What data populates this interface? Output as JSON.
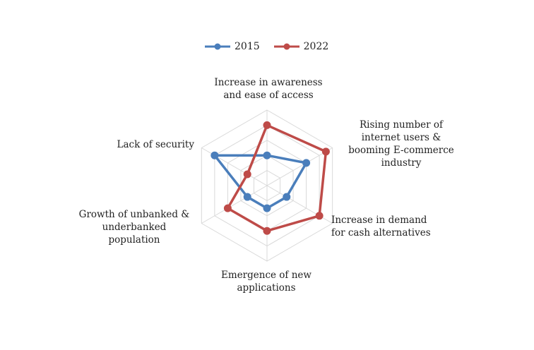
{
  "chart_data": {
    "type": "radar",
    "title": "",
    "categories": [
      "Increase in awareness\nand ease of access",
      "Rising number of\ninternet users &\nbooming E-commerce\nindustry",
      "Increase in demand\nfor cash alternatives",
      "Emergence of new\napplications",
      "Growth of unbanked &\nunderbanked\npopulation",
      "Lack of security"
    ],
    "rlim": [
      0,
      5
    ],
    "grid_levels": 5,
    "legend_position": "top",
    "series": [
      {
        "name": "2015",
        "values": [
          2.0,
          3.0,
          1.5,
          1.5,
          1.5,
          4.0
        ],
        "color": "#4a7ebb"
      },
      {
        "name": "2022",
        "values": [
          4.0,
          4.5,
          4.0,
          3.0,
          3.0,
          1.5
        ],
        "color": "#be4b48"
      }
    ]
  }
}
